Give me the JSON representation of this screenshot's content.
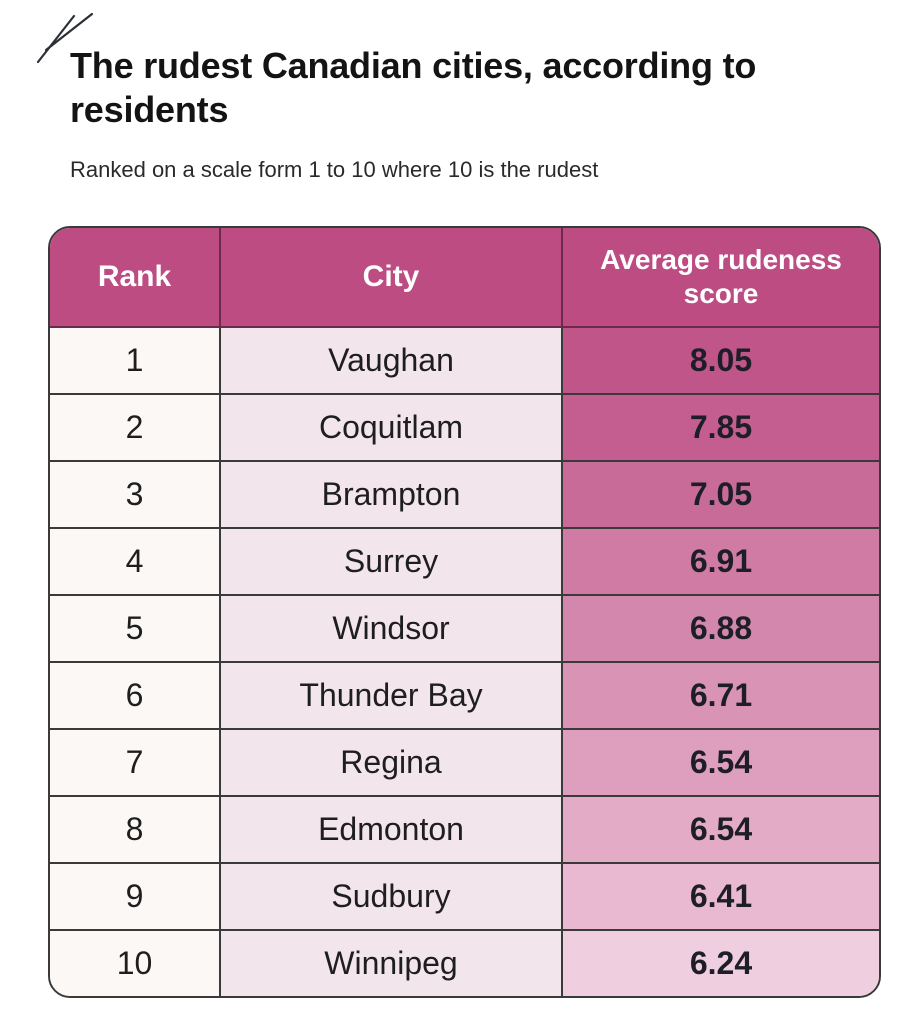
{
  "chart_data": {
    "type": "table",
    "title": "The rudest Canadian cities, according to residents",
    "subtitle": "Ranked on a scale form 1 to 10 where 10 is the rudest",
    "columns": [
      "Rank",
      "City",
      "Average rudeness score"
    ],
    "rows": [
      {
        "rank": "1",
        "city": "Vaughan",
        "score": "8.05"
      },
      {
        "rank": "2",
        "city": "Coquitlam",
        "score": "7.85"
      },
      {
        "rank": "3",
        "city": "Brampton",
        "score": "7.05"
      },
      {
        "rank": "4",
        "city": "Surrey",
        "score": "6.91"
      },
      {
        "rank": "5",
        "city": "Windsor",
        "score": "6.88"
      },
      {
        "rank": "6",
        "city": "Thunder Bay",
        "score": "6.71"
      },
      {
        "rank": "7",
        "city": "Regina",
        "score": "6.54"
      },
      {
        "rank": "8",
        "city": "Edmonton",
        "score": "6.54"
      },
      {
        "rank": "9",
        "city": "Sudbury",
        "score": "6.41"
      },
      {
        "rank": "10",
        "city": "Winnipeg",
        "score": "6.24"
      }
    ],
    "score_colors": [
      "#c0558a",
      "#c45e90",
      "#c96b98",
      "#cf7ba3",
      "#d487ac",
      "#d993b5",
      "#de9fbe",
      "#e3abc6",
      "#e8b9d0",
      "#efcee0"
    ]
  },
  "colors": {
    "header_bg": "#bc4c82",
    "header_text": "#ffffff",
    "city_bg": "#f2e5eb",
    "rank_bg": "#fbf8f6"
  }
}
